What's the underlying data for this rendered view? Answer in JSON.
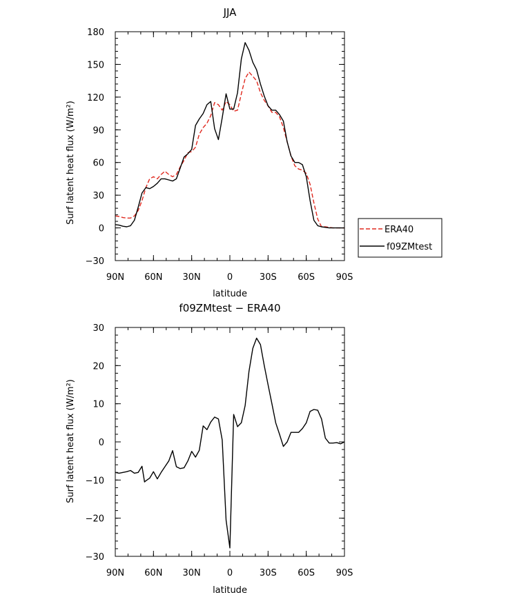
{
  "chart_data": [
    {
      "type": "line",
      "title": "JJA",
      "xlabel": "latitude",
      "ylabel": "Surf latent heat flux (W/m²)",
      "xlim": [
        90,
        -90
      ],
      "ylim": [
        -30,
        180
      ],
      "yticks": [
        -30,
        0,
        30,
        60,
        90,
        120,
        150,
        180
      ],
      "ytick_labels": [
        "−30",
        "0",
        "30",
        "60",
        "90",
        "120",
        "150",
        "180"
      ],
      "xticks": [
        90,
        60,
        30,
        0,
        -30,
        -60,
        -90
      ],
      "xtick_labels": [
        "90N",
        "60N",
        "30N",
        "0",
        "30S",
        "60S",
        "90S"
      ],
      "legend_position": "right",
      "series": [
        {
          "name": "ERA40",
          "color": "#e0281e",
          "dashed": true,
          "x": [
            90,
            87,
            84,
            81,
            78,
            75,
            72,
            69,
            66,
            63,
            60,
            57,
            54,
            51,
            48,
            45,
            42,
            39,
            36,
            33,
            30,
            27,
            24,
            21,
            18,
            15,
            12,
            9,
            6,
            3,
            0,
            -3,
            -6,
            -9,
            -12,
            -15,
            -18,
            -21,
            -24,
            -27,
            -30,
            -33,
            -36,
            -39,
            -42,
            -45,
            -48,
            -51,
            -54,
            -57,
            -60,
            -63,
            -66,
            -69,
            -72,
            -75,
            -78,
            -81,
            -84,
            -87,
            -90
          ],
          "y": [
            11,
            10.5,
            9.5,
            9,
            9,
            11,
            16,
            25,
            37,
            45,
            47,
            45,
            49,
            52,
            49,
            47,
            49,
            56,
            62,
            69,
            70,
            74,
            86,
            92,
            96,
            103,
            115,
            113,
            108,
            116,
            113,
            107,
            108,
            123,
            137,
            143,
            139,
            135,
            124,
            117,
            112,
            106,
            106,
            102,
            92,
            79,
            66,
            57,
            54,
            53,
            50,
            40,
            23,
            8,
            1,
            1,
            0.5,
            0,
            0,
            0,
            0
          ]
        },
        {
          "name": "f09ZMtest",
          "color": "#000000",
          "dashed": false,
          "x": [
            90,
            87,
            84,
            81,
            78,
            75,
            72,
            69,
            66,
            63,
            60,
            57,
            54,
            51,
            48,
            45,
            42,
            39,
            36,
            33,
            30,
            27,
            24,
            21,
            18,
            15,
            12,
            9,
            6,
            3,
            0,
            -3,
            -6,
            -9,
            -12,
            -15,
            -18,
            -21,
            -24,
            -27,
            -30,
            -33,
            -36,
            -39,
            -42,
            -45,
            -48,
            -51,
            -54,
            -57,
            -60,
            -63,
            -66,
            -69,
            -72,
            -75,
            -78,
            -81,
            -84,
            -87,
            -90
          ],
          "y": [
            3,
            2.5,
            1.5,
            1,
            2,
            7,
            19,
            32,
            37,
            36,
            38,
            41,
            45,
            45,
            44,
            43,
            45,
            55,
            65,
            68,
            72,
            94,
            100,
            105,
            113,
            116,
            91,
            81,
            101,
            123,
            109,
            109,
            124,
            155,
            170,
            163,
            152,
            145,
            132,
            121,
            112,
            108,
            108,
            104,
            98,
            79,
            66,
            60,
            60,
            58,
            47,
            25,
            7,
            2,
            1,
            0.5,
            0,
            0,
            0,
            0,
            0
          ]
        }
      ]
    },
    {
      "type": "line",
      "title": "f09ZMtest − ERA40",
      "xlabel": "latitude",
      "ylabel": "Surf latent heat flux (W/m²)",
      "xlim": [
        90,
        -90
      ],
      "ylim": [
        -30,
        30
      ],
      "yticks": [
        -30,
        -20,
        -10,
        0,
        10,
        20,
        30
      ],
      "ytick_labels": [
        "−30",
        "−20",
        "−10",
        "0",
        "10",
        "20",
        "30"
      ],
      "xticks": [
        90,
        60,
        30,
        0,
        -30,
        -60,
        -90
      ],
      "xtick_labels": [
        "90N",
        "60N",
        "30N",
        "0",
        "30S",
        "60S",
        "90S"
      ],
      "series": [
        {
          "color": "#000000",
          "dashed": false,
          "x": [
            90,
            87,
            84,
            81,
            78,
            75,
            72,
            69,
            67,
            66,
            63,
            60,
            57,
            54,
            51,
            48,
            45,
            42,
            39,
            36,
            33,
            30,
            27,
            24,
            21,
            18,
            15,
            12,
            9,
            6,
            3,
            0,
            -3,
            -6,
            -9,
            -12,
            -15,
            -18,
            -21,
            -24,
            -27,
            -30,
            -33,
            -36,
            -39,
            -42,
            -45,
            -48,
            -51,
            -54,
            -57,
            -60,
            -63,
            -66,
            -69,
            -72,
            -75,
            -78,
            -81,
            -84,
            -87,
            -90
          ],
          "y": [
            -8,
            -8.2,
            -8,
            -7.8,
            -7.5,
            -8.2,
            -8,
            -6.4,
            -10.5,
            -10.2,
            -9.5,
            -7.8,
            -9.7,
            -8,
            -6.5,
            -5,
            -2.3,
            -6.5,
            -7,
            -6.8,
            -5,
            -2.5,
            -4,
            -2.2,
            4.2,
            3.2,
            5.2,
            6.5,
            6,
            0.5,
            -20.5,
            -27.8,
            7.2,
            4,
            5,
            9.5,
            18.5,
            24.5,
            27.2,
            25.5,
            20,
            15,
            10,
            5,
            2,
            -1.2,
            0,
            2.5,
            2.5,
            2.5,
            3.5,
            5,
            8,
            8.5,
            8.3,
            6,
            1,
            -0.3,
            -0.3,
            -0.2,
            -0.5,
            0
          ]
        }
      ]
    }
  ]
}
